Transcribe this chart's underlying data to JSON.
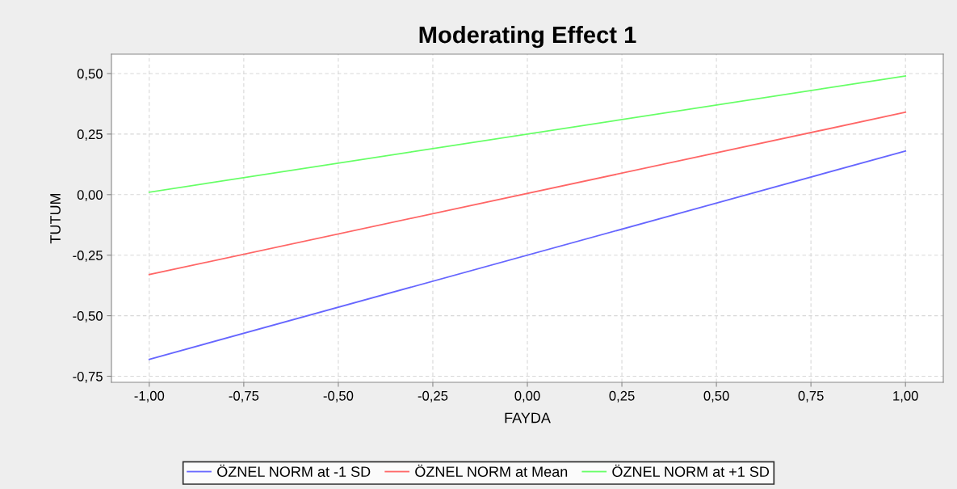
{
  "chart_data": {
    "type": "line",
    "title": "Moderating Effect 1",
    "xlabel": "FAYDA",
    "ylabel": "TUTUM",
    "x": [
      -1.0,
      1.0
    ],
    "series": [
      {
        "name": "ÖZNEL NORM at -1 SD",
        "color": "#6666ff",
        "values": [
          -0.68,
          0.18
        ]
      },
      {
        "name": "ÖZNEL NORM at Mean",
        "color": "#ff6666",
        "values": [
          -0.33,
          0.34
        ]
      },
      {
        "name": "ÖZNEL NORM at +1 SD",
        "color": "#66ff66",
        "values": [
          0.01,
          0.49
        ]
      }
    ],
    "xlim": [
      -1.1,
      1.1
    ],
    "xticks": [
      {
        "value": -1.0,
        "label": "-1,00"
      },
      {
        "value": -0.75,
        "label": "-0,75"
      },
      {
        "value": -0.5,
        "label": "-0,50"
      },
      {
        "value": -0.25,
        "label": "-0,25"
      },
      {
        "value": 0.0,
        "label": "0,00"
      },
      {
        "value": 0.25,
        "label": "0,25"
      },
      {
        "value": 0.5,
        "label": "0,50"
      },
      {
        "value": 0.75,
        "label": "0,75"
      },
      {
        "value": 1.0,
        "label": "1,00"
      }
    ],
    "ylim": [
      -0.775,
      0.58
    ],
    "yticks": [
      {
        "value": -0.75,
        "label": "-0,75"
      },
      {
        "value": -0.5,
        "label": "-0,50"
      },
      {
        "value": -0.25,
        "label": "-0,25"
      },
      {
        "value": 0.0,
        "label": "0,00"
      },
      {
        "value": 0.25,
        "label": "0,25"
      },
      {
        "value": 0.5,
        "label": "0,50"
      }
    ],
    "grid": true,
    "legend": "bottom",
    "marker": "none",
    "line_style": "solid"
  }
}
